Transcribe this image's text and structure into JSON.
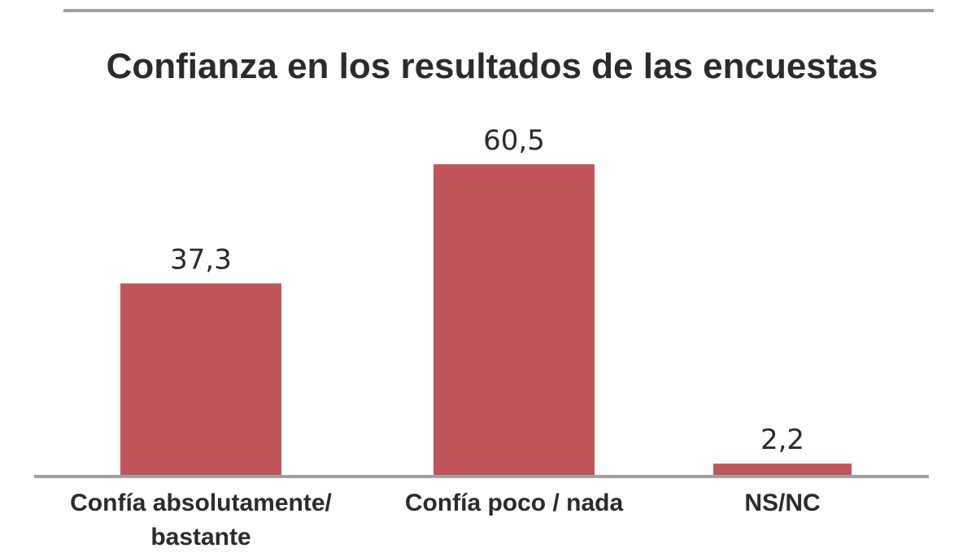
{
  "chart_data": {
    "type": "bar",
    "title": "Confianza en los resultados de las encuestas",
    "categories": [
      [
        "Confía absolutamente/",
        "bastante"
      ],
      [
        "Confía poco / nada"
      ],
      [
        "NS/NC"
      ]
    ],
    "values": [
      37.3,
      60.5,
      2.2
    ],
    "value_labels": [
      "37,3",
      "60,5",
      "2,2"
    ],
    "xlabel": "",
    "ylabel": "",
    "ylim": [
      0,
      60.5
    ],
    "grid": false,
    "bar_color": "#c0555a",
    "text_color": "#2b2b2b",
    "rule_color": "#a0a0a0"
  }
}
